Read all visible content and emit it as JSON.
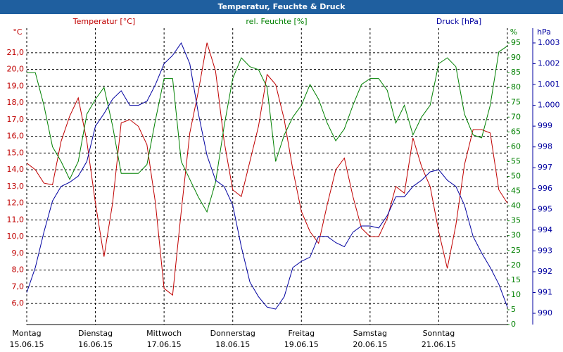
{
  "chart_data": {
    "type": "line",
    "title": "Temperatur, Feuchte & Druck",
    "ylabel": "°C",
    "y2label": "%",
    "y3label": "hPa",
    "xlim": [
      0,
      7
    ],
    "xticks": [
      {
        "value": 0,
        "label": "Montag",
        "date": "15.06.15"
      },
      {
        "value": 1,
        "label": "Dienstag",
        "date": "16.06.15"
      },
      {
        "value": 2,
        "label": "Mittwoch",
        "date": "17.06.15"
      },
      {
        "value": 3,
        "label": "Donnerstag",
        "date": "18.06.15"
      },
      {
        "value": 4,
        "label": "Freitag",
        "date": "19.06.15"
      },
      {
        "value": 5,
        "label": "Samstag",
        "date": "20.06.15"
      },
      {
        "value": 6,
        "label": "Sonntag",
        "date": "21.06.15"
      }
    ],
    "ylim": [
      4.74,
      22.47
    ],
    "yticks": [
      {
        "value": 6,
        "label": "6,0"
      },
      {
        "value": 7,
        "label": "7,0"
      },
      {
        "value": 8,
        "label": "8,0"
      },
      {
        "value": 9,
        "label": "9,0"
      },
      {
        "value": 10,
        "label": "10,0"
      },
      {
        "value": 11,
        "label": "11,0"
      },
      {
        "value": 12,
        "label": "12,0"
      },
      {
        "value": 13,
        "label": "13,0"
      },
      {
        "value": 14,
        "label": "14,0"
      },
      {
        "value": 15,
        "label": "15,0"
      },
      {
        "value": 16,
        "label": "16,0"
      },
      {
        "value": 17,
        "label": "17,0"
      },
      {
        "value": 18,
        "label": "18,0"
      },
      {
        "value": 19,
        "label": "19,0"
      },
      {
        "value": 20,
        "label": "20,0"
      },
      {
        "value": 21,
        "label": "21,0"
      }
    ],
    "y2lim": [
      0,
      100
    ],
    "y2ticks": [
      0,
      5,
      10,
      15,
      20,
      25,
      30,
      35,
      40,
      45,
      50,
      55,
      60,
      65,
      70,
      75,
      80,
      85,
      90,
      95
    ],
    "y3lim": [
      989.46,
      1003.71
    ],
    "y3ticks": [
      990,
      991,
      992,
      993,
      994,
      995,
      996,
      997,
      998,
      999,
      {
        "value": 1000,
        "label": "1.000"
      },
      {
        "value": 1001,
        "label": "1.001"
      },
      {
        "value": 1002,
        "label": "1.002"
      },
      {
        "value": 1003,
        "label": "1.003"
      }
    ],
    "grid": true,
    "x": [
      0,
      0.125,
      0.25,
      0.375,
      0.5,
      0.625,
      0.75,
      0.875,
      1,
      1.125,
      1.25,
      1.375,
      1.5,
      1.625,
      1.75,
      1.875,
      2,
      2.125,
      2.25,
      2.375,
      2.5,
      2.625,
      2.75,
      2.875,
      3,
      3.125,
      3.25,
      3.375,
      3.5,
      3.625,
      3.75,
      3.875,
      4,
      4.125,
      4.25,
      4.375,
      4.5,
      4.625,
      4.75,
      4.875,
      5,
      5.125,
      5.25,
      5.375,
      5.5,
      5.625,
      5.75,
      5.875,
      6,
      6.125,
      6.25,
      6.375,
      6.5,
      6.625,
      6.75,
      6.875,
      7
    ],
    "series": [
      {
        "name": "Temperatur [°C]",
        "color": "#c00000",
        "axis": "y",
        "values": [
          14.4,
          14.0,
          13.2,
          13.1,
          15.7,
          17.2,
          18.3,
          15.7,
          12.0,
          8.8,
          12.0,
          16.8,
          17.0,
          16.6,
          15.5,
          12.0,
          6.9,
          6.5,
          11.5,
          16.2,
          18.7,
          21.6,
          19.9,
          15.7,
          12.8,
          12.4,
          14.5,
          16.6,
          19.7,
          19.1,
          17.0,
          14.0,
          11.5,
          10.3,
          9.6,
          11.9,
          14.0,
          14.7,
          12.4,
          10.5,
          10.0,
          10.0,
          11.1,
          13.0,
          12.6,
          15.9,
          14.2,
          13.0,
          10.3,
          8.1,
          10.7,
          14.3,
          16.4,
          16.4,
          16.2,
          12.8,
          12.0
        ]
      },
      {
        "name": "rel. Feuchte [%]",
        "color": "#008000",
        "axis": "y2",
        "values": [
          85,
          85,
          74,
          60,
          55,
          49,
          55,
          71,
          76,
          80,
          67,
          51,
          51,
          51,
          54,
          69,
          83,
          83,
          55,
          49,
          43,
          38,
          48,
          67,
          83,
          90,
          87,
          86,
          80,
          55,
          64,
          70,
          74,
          81,
          76,
          68,
          62,
          66,
          74,
          81,
          83,
          83,
          79,
          68,
          74,
          64,
          70,
          74,
          88,
          90,
          87,
          71,
          64,
          63,
          74,
          92,
          94
        ]
      },
      {
        "name": "Druck [hPa]",
        "color": "#0000a0",
        "axis": "y3",
        "values": [
          991.0,
          992.2,
          993.9,
          995.4,
          996.1,
          996.3,
          996.6,
          997.3,
          999.0,
          999.6,
          1000.3,
          1000.7,
          1000.0,
          1000.0,
          1000.2,
          1001.0,
          1002.0,
          1002.4,
          1003.0,
          1002.0,
          999.6,
          997.6,
          996.4,
          996.1,
          995.2,
          993.2,
          991.5,
          990.8,
          990.3,
          990.2,
          990.8,
          992.2,
          992.5,
          992.7,
          993.7,
          993.7,
          993.4,
          993.2,
          993.9,
          994.2,
          994.2,
          994.1,
          994.7,
          995.6,
          995.6,
          996.1,
          996.4,
          996.8,
          996.9,
          996.4,
          996.1,
          995.2,
          993.7,
          992.9,
          992.2,
          991.4,
          990.3
        ]
      }
    ]
  }
}
